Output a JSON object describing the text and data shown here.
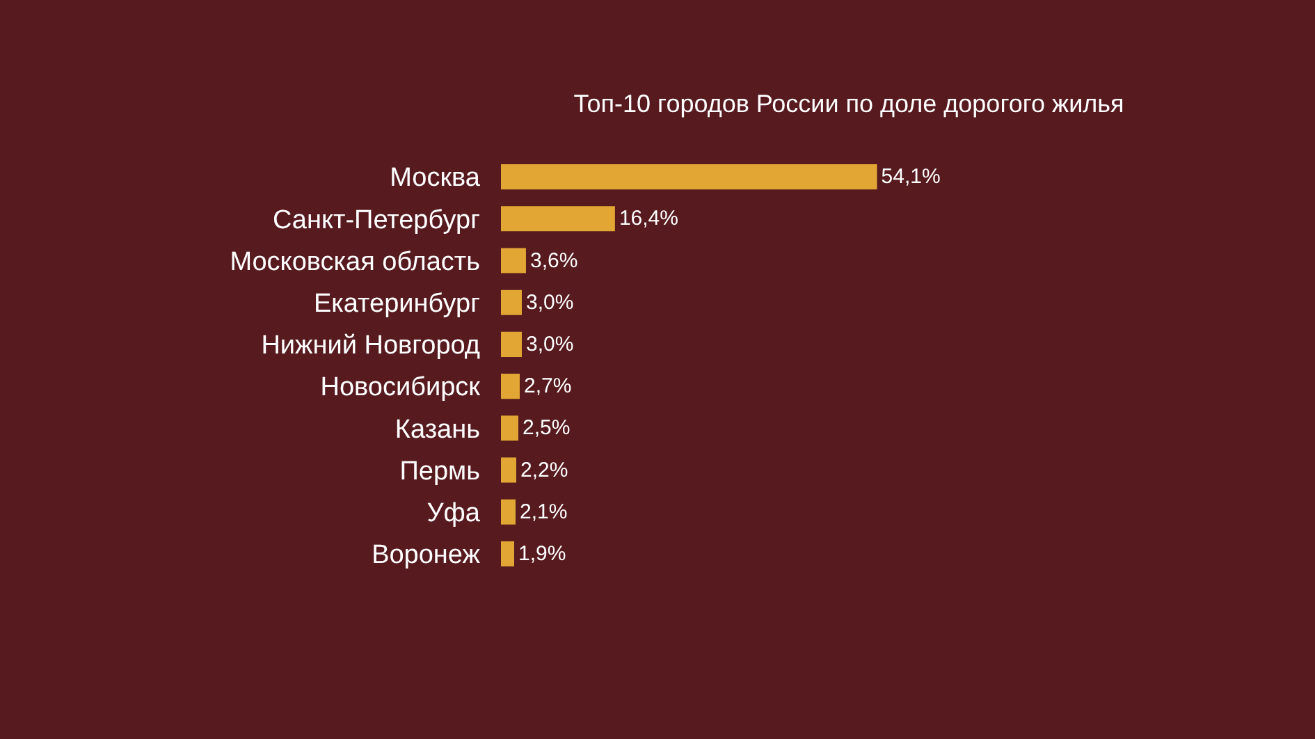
{
  "chart_data": {
    "type": "bar",
    "orientation": "horizontal",
    "title": "Топ-10 городов России по доле дорогого жилья",
    "categories": [
      "Москва",
      "Санкт-Петербург",
      "Московская область",
      "Екатеринбург",
      "Нижний Новгород",
      "Новосибирск",
      "Казань",
      "Пермь",
      "Уфа",
      "Воронеж"
    ],
    "values": [
      54.1,
      16.4,
      3.6,
      3.0,
      3.0,
      2.7,
      2.5,
      2.2,
      2.1,
      1.9
    ],
    "value_labels": [
      "54,1%",
      "16,4%",
      "3,6%",
      "3,0%",
      "3,0%",
      "2,7%",
      "2,5%",
      "2,2%",
      "2,1%",
      "1,9%"
    ],
    "color": "#e2a634",
    "grid": false,
    "legend": false,
    "tick_labels": "y"
  }
}
